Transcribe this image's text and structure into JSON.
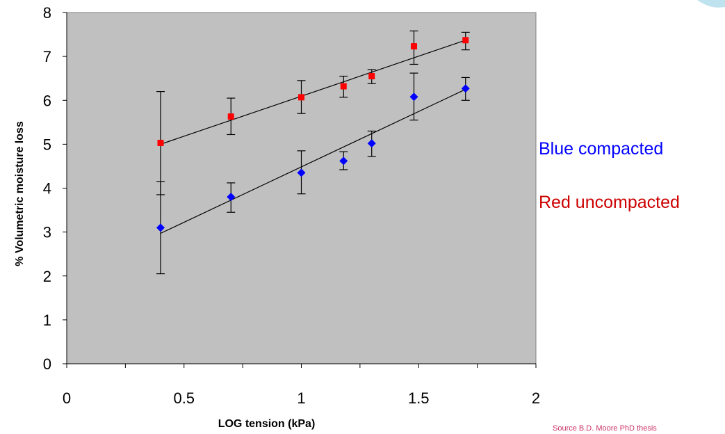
{
  "chart_data": {
    "type": "scatter",
    "title": "",
    "xlabel": "LOG tension (kPa)",
    "ylabel": "% Volumetric moisture loss",
    "xlim": [
      0,
      2
    ],
    "ylim": [
      0,
      8
    ],
    "x_ticks": [
      "0",
      "0.5",
      "1",
      "1.5",
      "2"
    ],
    "y_ticks": [
      "0",
      "1",
      "2",
      "3",
      "4",
      "5",
      "6",
      "7",
      "8"
    ],
    "grid": false,
    "plot_background": "#C0C0C0",
    "legend_placement": "right",
    "series": [
      {
        "label": "Blue compacted",
        "color": "#0000FF",
        "marker": "diamond",
        "x": [
          0.4,
          0.7,
          1.0,
          1.18,
          1.3,
          1.48,
          1.7
        ],
        "y": [
          3.1,
          3.8,
          4.35,
          4.62,
          5.02,
          6.08,
          6.27
        ],
        "err_low": [
          2.05,
          3.45,
          3.87,
          4.42,
          4.72,
          5.55,
          6.0
        ],
        "err_high": [
          4.15,
          4.12,
          4.85,
          4.83,
          5.3,
          6.62,
          6.52
        ],
        "trend": [
          [
            0.4,
            2.97
          ],
          [
            1.7,
            6.25
          ]
        ]
      },
      {
        "label": "Red uncompacted",
        "color": "#FF0000",
        "marker": "square",
        "x": [
          0.4,
          0.7,
          1.0,
          1.18,
          1.3,
          1.48,
          1.7
        ],
        "y": [
          5.03,
          5.63,
          6.07,
          6.32,
          6.55,
          7.23,
          7.37
        ],
        "err_low": [
          3.85,
          5.22,
          5.7,
          6.07,
          6.38,
          6.82,
          7.15
        ],
        "err_high": [
          6.2,
          6.05,
          6.45,
          6.55,
          6.7,
          7.58,
          7.55
        ],
        "trend": [
          [
            0.4,
            5.0
          ],
          [
            1.7,
            7.37
          ]
        ]
      }
    ]
  },
  "annotations": {
    "legend_blue": "Blue compacted",
    "legend_red": "Red uncompacted",
    "legend_blue_color": "#0000FF",
    "legend_red_color": "#CC0000",
    "source": "Source B.D. Moore PhD thesis",
    "source_color": "#CC3366"
  }
}
